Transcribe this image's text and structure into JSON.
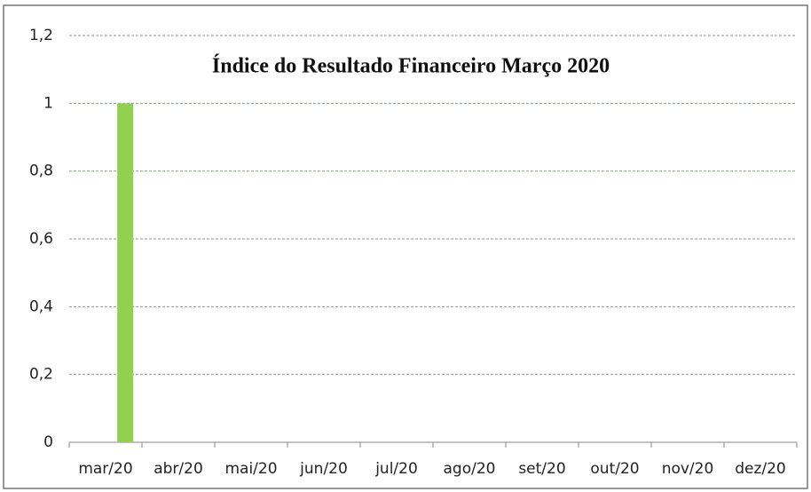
{
  "chart_data": {
    "type": "bar",
    "title": "Índice do Resultado Financeiro Março 2020",
    "categories": [
      "mar/20",
      "abr/20",
      "mai/20",
      "jun/20",
      "jul/20",
      "ago/20",
      "set/20",
      "out/20",
      "nov/20",
      "dez/20"
    ],
    "values": [
      1,
      null,
      null,
      null,
      null,
      null,
      null,
      null,
      null,
      null
    ],
    "color": "#92d050",
    "ylim": [
      0,
      1.2
    ],
    "yticks": [
      0,
      {
        "value": 0.2,
        "label": "0,2"
      },
      {
        "value": 0.4,
        "label": "0,4"
      },
      {
        "value": 0.6,
        "label": "0,6"
      },
      {
        "value": 0.8,
        "label": "0,8"
      },
      1,
      {
        "value": 1.2,
        "label": "1,2"
      }
    ],
    "grid": true
  }
}
